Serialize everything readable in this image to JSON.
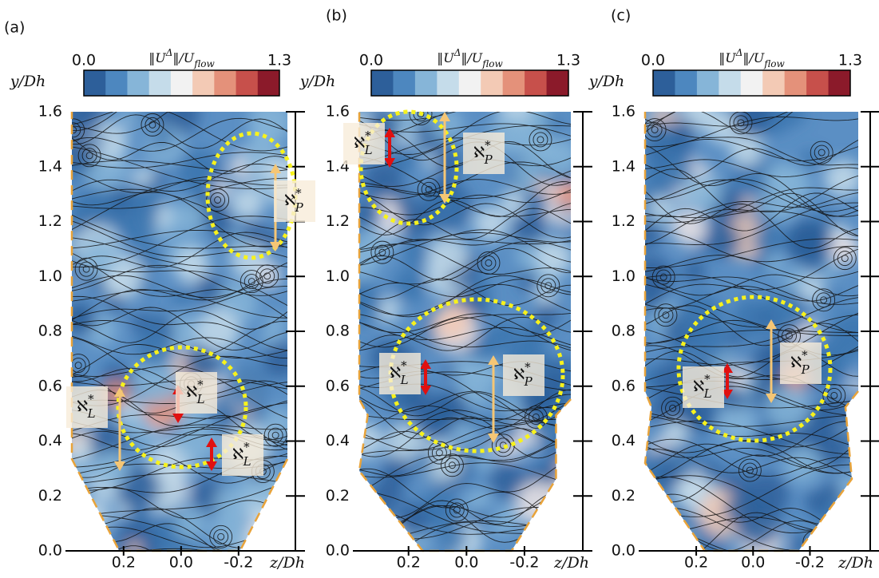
{
  "chart_data": [
    {
      "type": "streamline",
      "title": "(a)",
      "ylabel": "y/Dh",
      "xlabel": "z/Dh",
      "xlim": [
        0.38,
        -0.37
      ],
      "xticks": [
        0.2,
        {
          "value": 0,
          "label": "0.0"
        },
        -0.2
      ],
      "ylim": [
        0,
        1.6
      ],
      "yticks": [
        {
          "value": 0,
          "label": "0.0"
        },
        0.2,
        0.4,
        0.6,
        0.8,
        {
          "value": 1,
          "label": "1.0"
        },
        1.2,
        1.4,
        1.6
      ],
      "colorbar": {
        "label": [
          "‖U",
          "Δ",
          "‖/U",
          "flow"
        ],
        "ticks": [
          {
            "value": 0,
            "label": "0.0"
          },
          1.3
        ],
        "colors": [
          "#2d5f9a",
          "#4d87bf",
          "#86b5d8",
          "#c5dcea",
          "#f2f2f2",
          "#f3cab5",
          "#e4917a",
          "#c7504b",
          "#8b1a2a"
        ]
      },
      "annotations": [
        {
          "symbol": "ℵ",
          "sup": "*",
          "sub": "L"
        },
        {
          "symbol": "ℵ",
          "sup": "*",
          "sub": "L"
        },
        {
          "symbol": "ℵ",
          "sup": "*",
          "sub": "L"
        },
        {
          "symbol": "ℵ",
          "sup": "*",
          "sub": "P"
        }
      ]
    },
    {
      "type": "streamline",
      "title": "(b)",
      "ylabel": "y/Dh",
      "xlabel": "z/Dh",
      "xlim": [
        0.37,
        -0.36
      ],
      "xticks": [
        0.2,
        {
          "value": 0,
          "label": "0.0"
        },
        -0.2
      ],
      "ylim": [
        0,
        1.6
      ],
      "yticks": [
        {
          "value": 0,
          "label": "0.0"
        },
        0.2,
        0.4,
        0.6,
        0.8,
        {
          "value": 1,
          "label": "1.0"
        },
        1.2,
        1.4,
        1.6
      ],
      "colorbar": {
        "label": [
          "‖U",
          "Δ",
          "‖/U",
          "flow"
        ],
        "ticks": [
          {
            "value": 0,
            "label": "0.0"
          },
          1.3
        ],
        "colors": [
          "#2d5f9a",
          "#4d87bf",
          "#86b5d8",
          "#c5dcea",
          "#f2f2f2",
          "#f3cab5",
          "#e4917a",
          "#c7504b",
          "#8b1a2a"
        ]
      },
      "annotations": [
        {
          "symbol": "ℵ",
          "sup": "*",
          "sub": "L"
        },
        {
          "symbol": "ℵ",
          "sup": "*",
          "sub": "P"
        },
        {
          "symbol": "ℵ",
          "sup": "*",
          "sub": "L"
        },
        {
          "symbol": "ℵ",
          "sup": "*",
          "sub": "P"
        }
      ]
    },
    {
      "type": "streamline",
      "title": "(c)",
      "ylabel": "y/Dh",
      "xlabel": "z/Dh",
      "xlim": [
        0.38,
        -0.37
      ],
      "xticks": [
        0.2,
        {
          "value": 0,
          "label": "0.0"
        },
        -0.2
      ],
      "ylim": [
        0,
        1.6
      ],
      "yticks": [
        {
          "value": 0,
          "label": "0.0"
        },
        0.2,
        0.4,
        0.6,
        0.8,
        {
          "value": 1,
          "label": "1.0"
        },
        1.2,
        1.4,
        1.6
      ],
      "colorbar": {
        "label": [
          "‖U",
          "Δ",
          "‖/U",
          "flow"
        ],
        "ticks": [
          {
            "value": 0,
            "label": "0.0"
          },
          1.3
        ],
        "colors": [
          "#2d5f9a",
          "#4d87bf",
          "#86b5d8",
          "#c5dcea",
          "#f2f2f2",
          "#f3cab5",
          "#e4917a",
          "#c7504b",
          "#8b1a2a"
        ]
      },
      "annotations": [
        {
          "symbol": "ℵ",
          "sup": "*",
          "sub": "L"
        },
        {
          "symbol": "ℵ",
          "sup": "*",
          "sub": "P"
        }
      ]
    }
  ]
}
